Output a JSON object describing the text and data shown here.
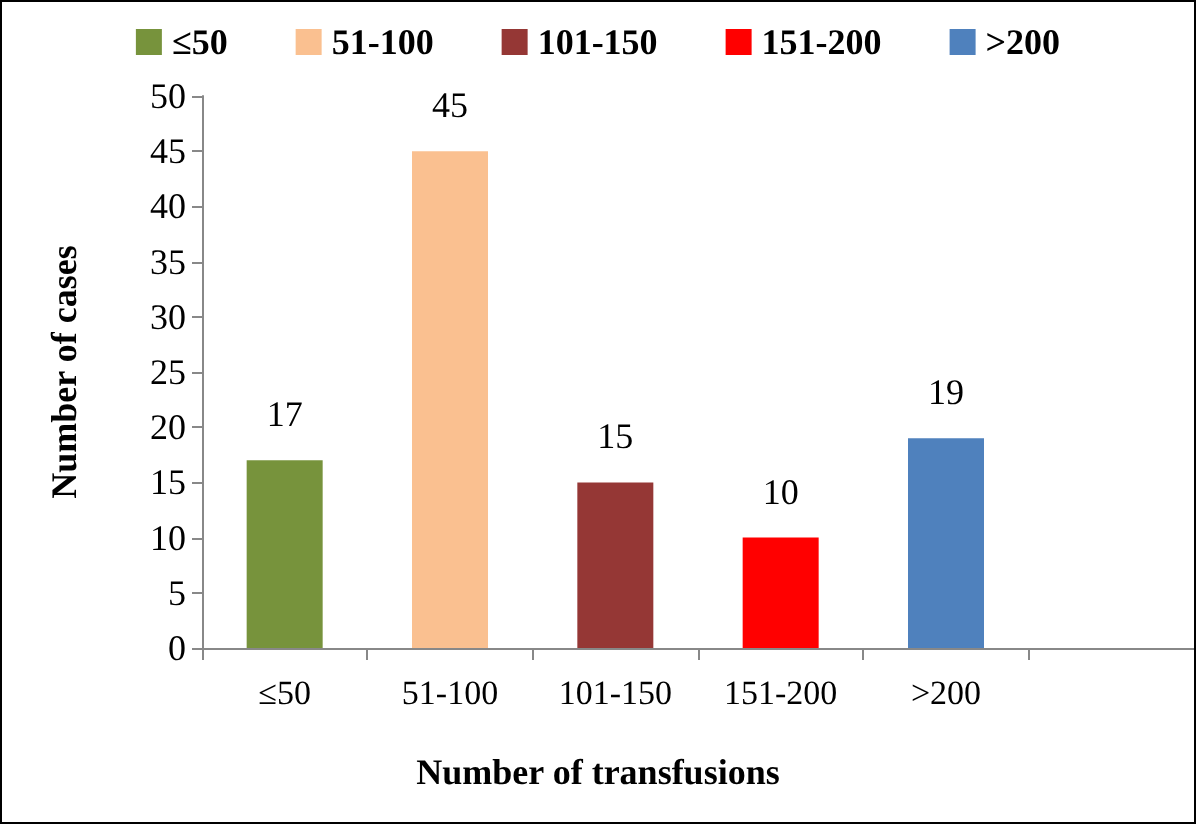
{
  "chart_data": {
    "type": "bar",
    "xlabel": "Number of transfusions",
    "ylabel": "Number of cases",
    "categories": [
      "≤50",
      "51-100",
      "101-150",
      "151-200",
      ">200",
      null
    ],
    "series": [
      {
        "name": "≤50",
        "color": "#77933c",
        "values": [
          17,
          null,
          null,
          null,
          null,
          null
        ]
      },
      {
        "name": "51-100",
        "color": "#fac090",
        "values": [
          null,
          45,
          null,
          null,
          null,
          null
        ]
      },
      {
        "name": "101-150",
        "color": "#953735",
        "values": [
          null,
          null,
          15,
          null,
          null,
          null
        ]
      },
      {
        "name": "151-200",
        "color": "#ff0000",
        "values": [
          null,
          null,
          null,
          10,
          null,
          null
        ]
      },
      {
        "name": ">200",
        "color": "#4f81bd",
        "values": [
          null,
          null,
          null,
          null,
          19,
          null
        ]
      }
    ],
    "ylim": [
      0,
      50
    ],
    "yticks": [
      0,
      5,
      10,
      15,
      20,
      25,
      30,
      35,
      40,
      45,
      50
    ],
    "grid": false,
    "legend": "top",
    "data_labels": true
  }
}
